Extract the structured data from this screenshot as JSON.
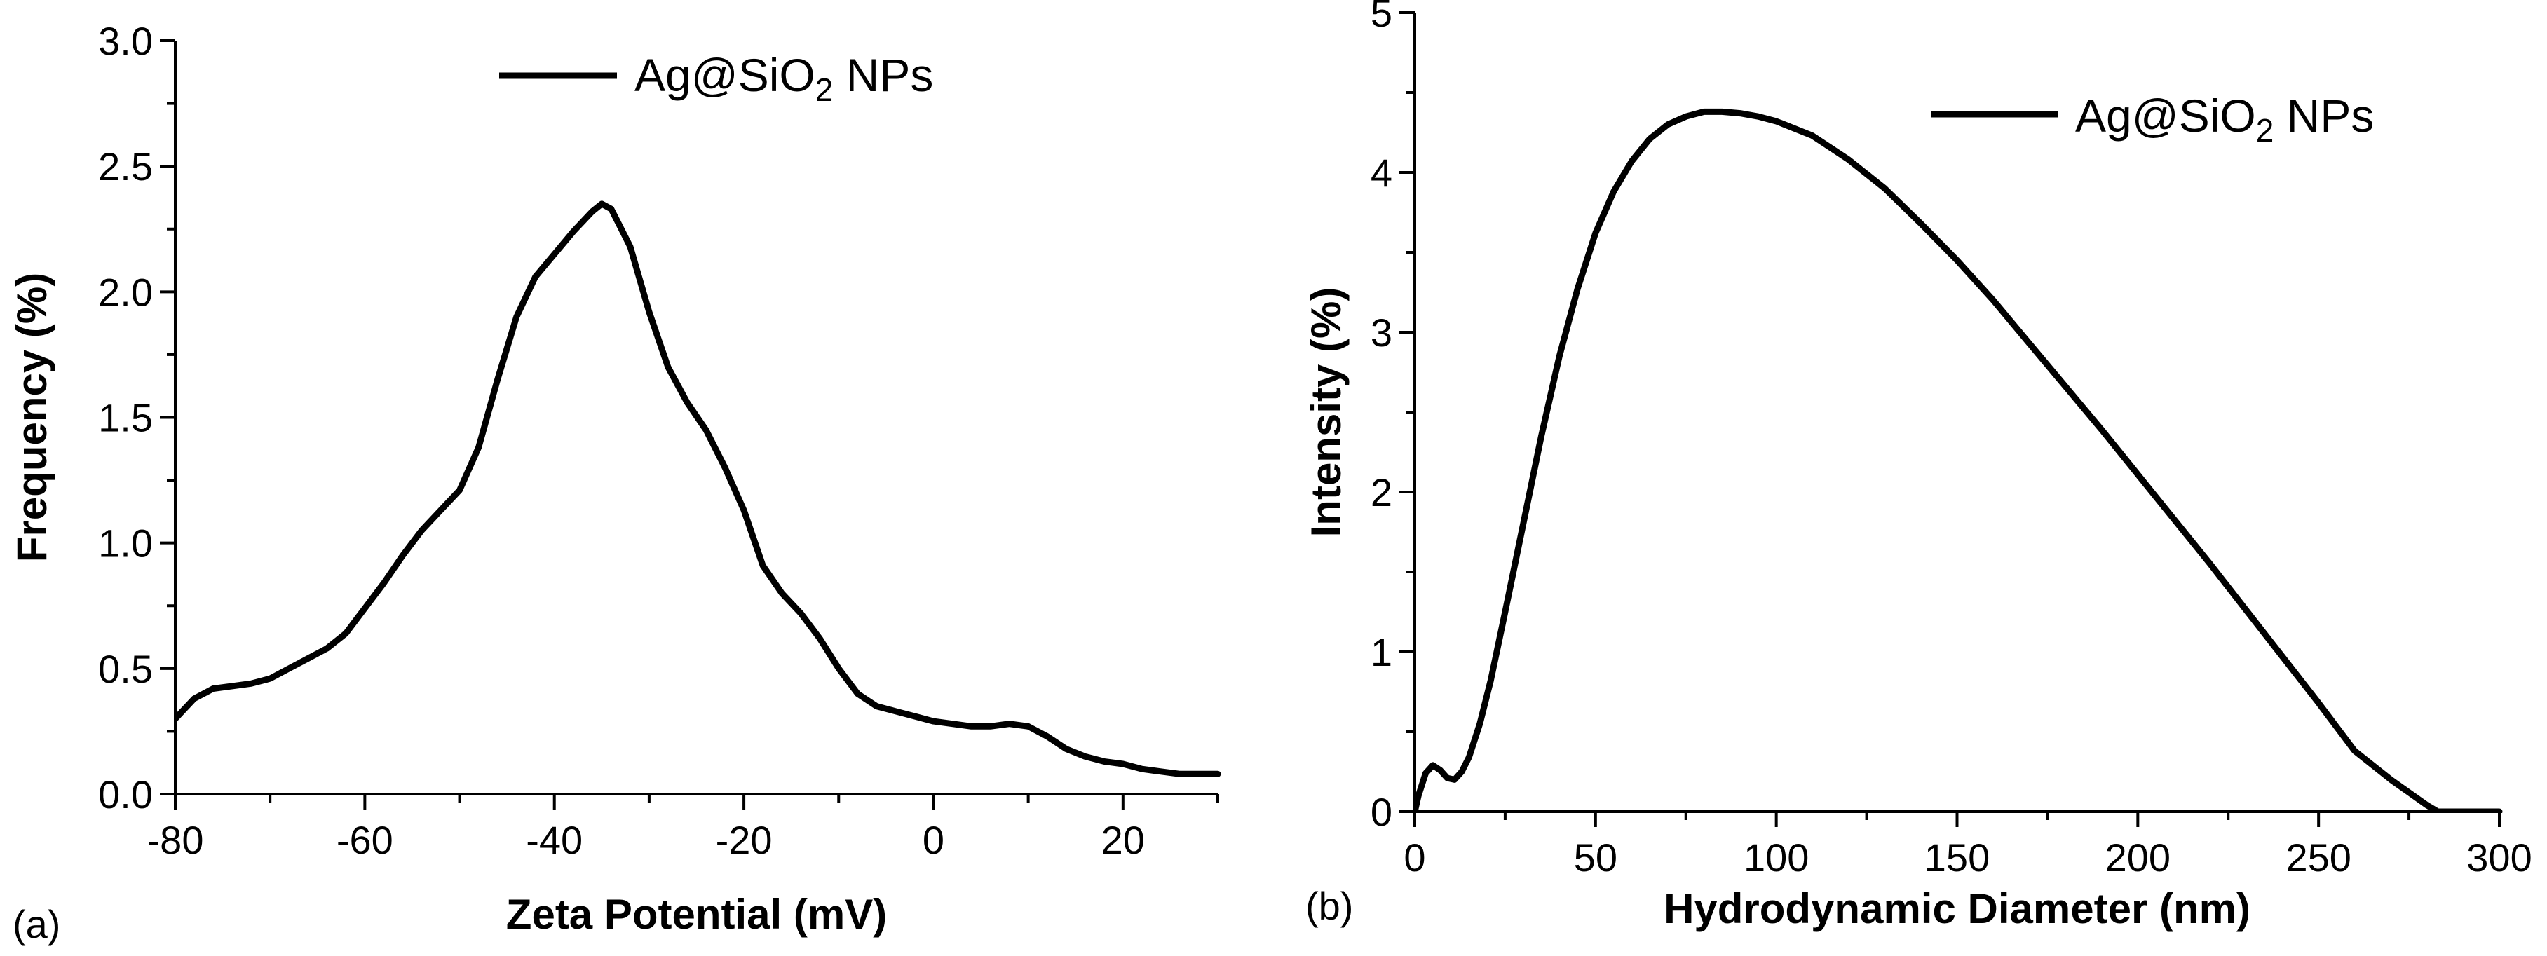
{
  "chart_data": [
    {
      "type": "line",
      "panel_label": "(a)",
      "title": "",
      "xlabel": "Zeta Potential (mV)",
      "ylabel": "Frequency (%)",
      "xlim": [
        -80,
        30
      ],
      "ylim": [
        0,
        3.0
      ],
      "xticks": [
        -80,
        -60,
        -40,
        -20,
        0,
        20
      ],
      "xtick_labels": [
        "-80",
        "-60",
        "-40",
        "-20",
        "0",
        "20"
      ],
      "yticks": [
        0,
        0.5,
        1.0,
        1.5,
        2.0,
        2.5,
        3.0
      ],
      "ytick_labels": [
        "0.0",
        "0.5",
        "1.0",
        "1.5",
        "2.0",
        "2.5",
        "3.0"
      ],
      "legend": {
        "position": "top-center",
        "series_name": "Ag@SiO",
        "subscript": "2",
        "suffix": " NPs"
      },
      "series": [
        {
          "name": "Ag@SiO2 NPs",
          "color": "#000000",
          "x": [
            -80,
            -78,
            -76,
            -74,
            -72,
            -70,
            -68,
            -66,
            -64,
            -62,
            -60,
            -58,
            -56,
            -54,
            -52,
            -50,
            -48,
            -46,
            -44,
            -42,
            -40,
            -38,
            -36,
            -35,
            -34,
            -32,
            -30,
            -28,
            -26,
            -24,
            -22,
            -20,
            -18,
            -16,
            -14,
            -12,
            -10,
            -8,
            -6,
            -4,
            -2,
            0,
            2,
            4,
            6,
            8,
            10,
            12,
            14,
            16,
            18,
            20,
            22,
            24,
            26,
            28,
            30
          ],
          "y": [
            0.3,
            0.38,
            0.42,
            0.43,
            0.44,
            0.46,
            0.5,
            0.54,
            0.58,
            0.64,
            0.74,
            0.84,
            0.95,
            1.05,
            1.13,
            1.21,
            1.38,
            1.65,
            1.9,
            2.06,
            2.15,
            2.24,
            2.32,
            2.35,
            2.33,
            2.18,
            1.92,
            1.7,
            1.56,
            1.45,
            1.3,
            1.13,
            0.91,
            0.8,
            0.72,
            0.62,
            0.5,
            0.4,
            0.35,
            0.33,
            0.31,
            0.29,
            0.28,
            0.27,
            0.27,
            0.28,
            0.27,
            0.23,
            0.18,
            0.15,
            0.13,
            0.12,
            0.1,
            0.09,
            0.08,
            0.08,
            0.08
          ]
        }
      ]
    },
    {
      "type": "line",
      "panel_label": "(b)",
      "title": "",
      "xlabel": "Hydrodynamic Diameter (nm)",
      "ylabel": "Intensity (%)",
      "xlim": [
        0,
        300
      ],
      "ylim": [
        0,
        5
      ],
      "xticks": [
        0,
        50,
        100,
        150,
        200,
        250,
        300
      ],
      "xtick_labels": [
        "0",
        "50",
        "100",
        "150",
        "200",
        "250",
        "300"
      ],
      "yticks": [
        0,
        1,
        2,
        3,
        4,
        5
      ],
      "ytick_labels": [
        "0",
        "1",
        "2",
        "3",
        "4",
        "5"
      ],
      "legend": {
        "position": "top-right",
        "series_name": "Ag@SiO",
        "subscript": "2",
        "suffix": " NPs"
      },
      "series": [
        {
          "name": "Ag@SiO2 NPs",
          "color": "#000000",
          "x": [
            0,
            1,
            3,
            5,
            7,
            9,
            11,
            13,
            15,
            18,
            21,
            25,
            30,
            35,
            40,
            45,
            50,
            55,
            60,
            65,
            70,
            75,
            80,
            85,
            90,
            95,
            100,
            110,
            120,
            130,
            140,
            150,
            160,
            170,
            180,
            190,
            200,
            210,
            220,
            230,
            240,
            250,
            260,
            270,
            280,
            283,
            290,
            300
          ],
          "y": [
            0,
            0.1,
            0.24,
            0.29,
            0.26,
            0.21,
            0.2,
            0.25,
            0.34,
            0.55,
            0.82,
            1.25,
            1.8,
            2.35,
            2.85,
            3.27,
            3.62,
            3.88,
            4.07,
            4.21,
            4.3,
            4.35,
            4.38,
            4.38,
            4.37,
            4.35,
            4.32,
            4.23,
            4.08,
            3.9,
            3.68,
            3.45,
            3.2,
            2.93,
            2.66,
            2.39,
            2.11,
            1.83,
            1.55,
            1.26,
            0.97,
            0.68,
            0.38,
            0.2,
            0.04,
            0,
            0,
            0
          ]
        }
      ]
    }
  ]
}
